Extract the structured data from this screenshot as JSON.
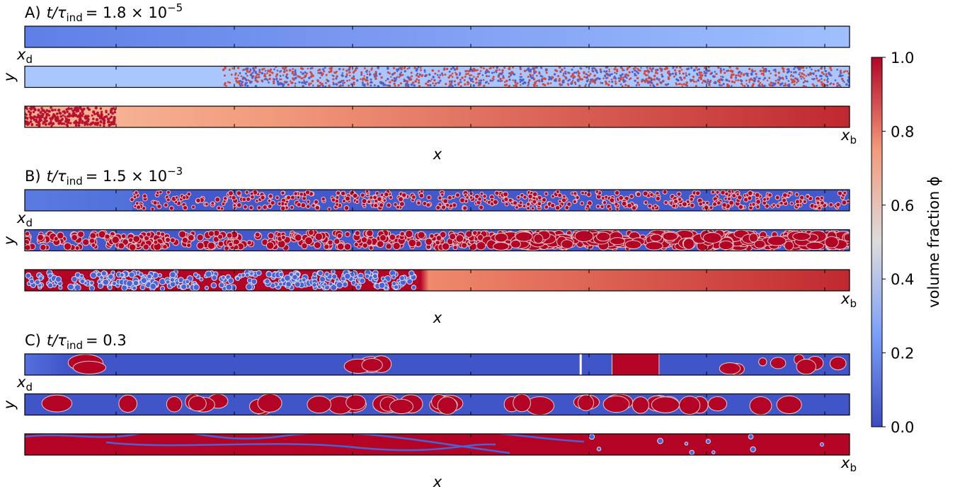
{
  "chart_data": {
    "type": "strips",
    "panels": [
      {
        "label": "A)",
        "var": "t/τ",
        "sub": "ind",
        "eq": "= 1.8 × 10",
        "sup": "−5",
        "xd": "x",
        "xd_sub": "d",
        "ylabel": "y",
        "xb": "x",
        "xb_sub": "b",
        "xlabel": "x"
      },
      {
        "label": "B)",
        "var": "t/τ",
        "sub": "ind",
        "eq": "= 1.5 × 10",
        "sup": "−3",
        "xd": "x",
        "xd_sub": "d",
        "ylabel": "y",
        "xb": "x",
        "xb_sub": "b",
        "xlabel": "x"
      },
      {
        "label": "C)",
        "var": "t/τ",
        "sub": "ind",
        "eq": "= 0.3",
        "xd": "x",
        "xd_sub": "d",
        "ylabel": "y",
        "xb": "x",
        "xb_sub": "b",
        "xlabel": "x"
      }
    ],
    "colorbar": {
      "label": "volume fraction ϕ",
      "lim": [
        0,
        1
      ],
      "ticks": [
        {
          "value": 0,
          "label": "0.0"
        },
        {
          "value": 0.2,
          "label": "0.2"
        },
        {
          "value": 0.4,
          "label": "0.4"
        },
        {
          "value": 0.6,
          "label": "0.6"
        },
        {
          "value": 0.8,
          "label": "0.8"
        },
        {
          "value": 1,
          "label": "1.0"
        }
      ]
    }
  }
}
